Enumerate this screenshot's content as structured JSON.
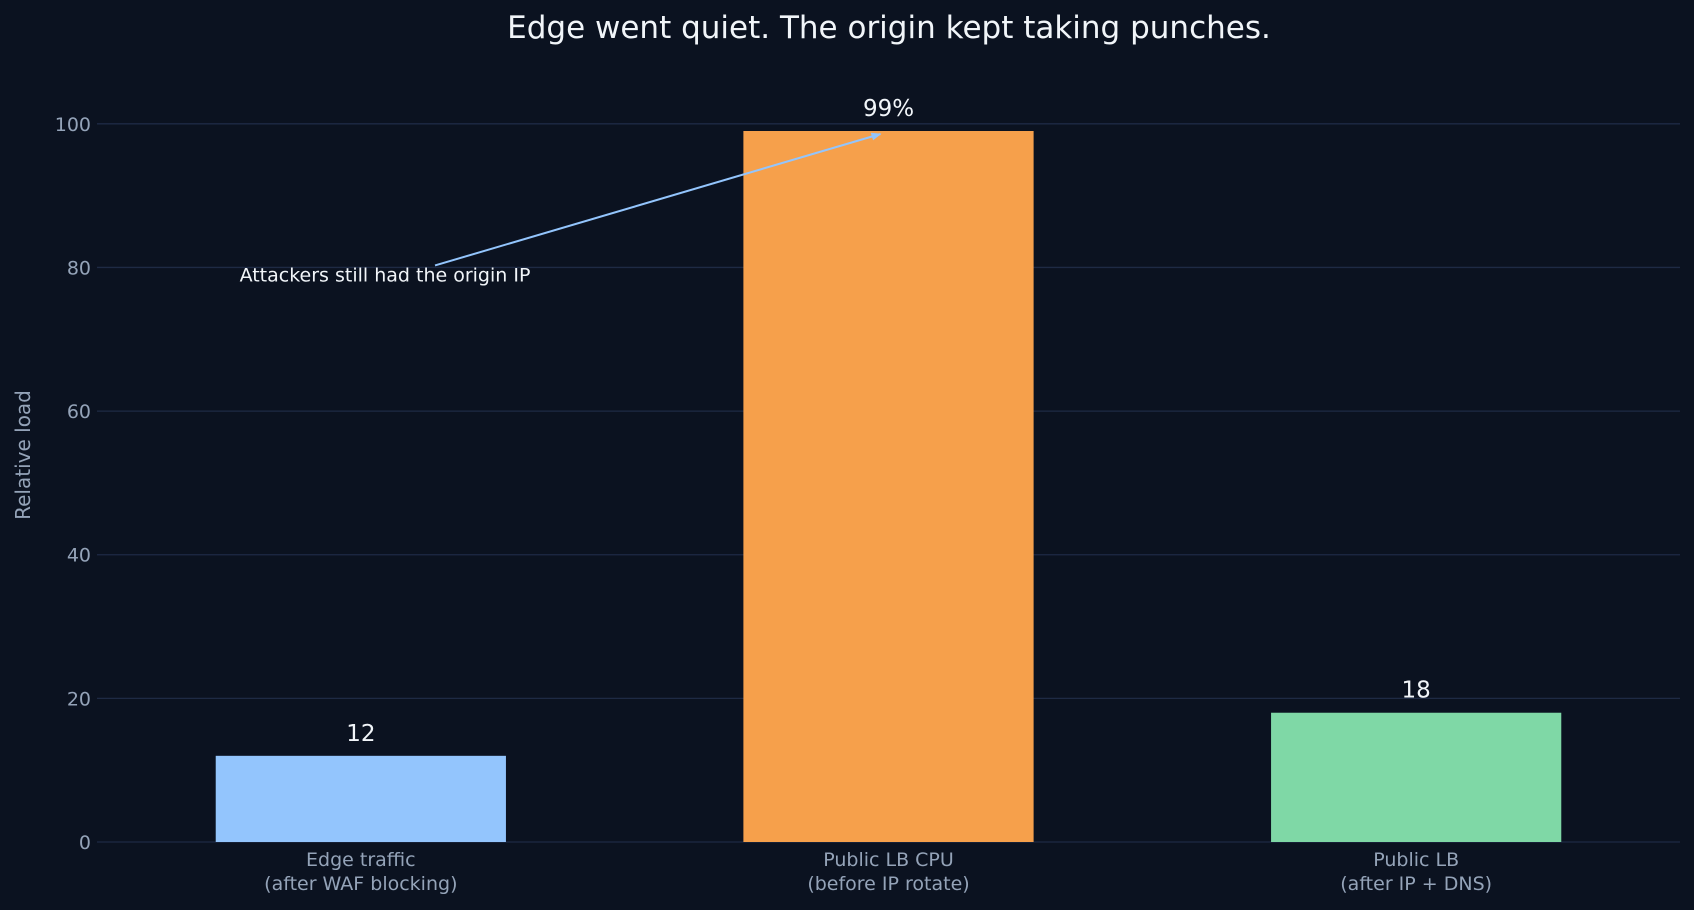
{
  "chart_data": {
    "type": "bar",
    "title": "Edge went quiet. The origin kept taking punches.",
    "xlabel": "",
    "ylabel": "Relative load",
    "ylim": [
      0,
      110
    ],
    "yticks": [
      0,
      20,
      40,
      60,
      80,
      100
    ],
    "grid": true,
    "categories": [
      [
        "Edge traffic",
        "(after WAF blocking)"
      ],
      [
        "Public LB CPU",
        "(before IP rotate)"
      ],
      [
        "Public LB",
        "(after IP + DNS)"
      ]
    ],
    "values": [
      12,
      99,
      18
    ],
    "value_labels": [
      "12",
      "99%",
      "18"
    ],
    "colors": [
      "#93c5fd",
      "#f6a04b",
      "#7fd8a6"
    ],
    "annotation": {
      "text": "Attackers still had the origin IP",
      "target_category_index": 1,
      "target_value": 99,
      "text_anchor_value": 80,
      "arrow_color": "#93c5fd"
    }
  },
  "colors": {
    "background": "#0b1220",
    "text": "#f1f5f9",
    "muted": "#94a3b8",
    "grid": "#1e2a44"
  }
}
